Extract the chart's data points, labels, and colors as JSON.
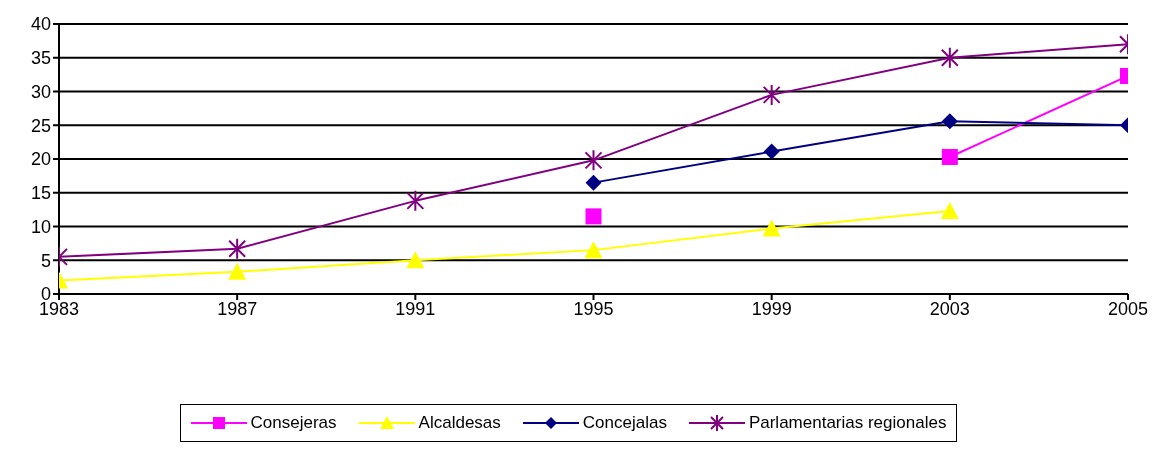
{
  "chart_data": {
    "type": "line",
    "categories": [
      "1983",
      "1987",
      "1991",
      "1995",
      "1999",
      "2003",
      "2005"
    ],
    "ylim": [
      0,
      40
    ],
    "yticks": [
      0,
      5,
      10,
      15,
      20,
      25,
      30,
      35,
      40
    ],
    "grid": "y",
    "legend": "bottom",
    "series": [
      {
        "name": "Consejeras",
        "color": "#ff00ff",
        "marker": "square",
        "values": [
          null,
          null,
          null,
          11.5,
          null,
          20.3,
          32.3
        ]
      },
      {
        "name": "Alcaldesas",
        "color": "#ffff00",
        "marker": "triangle",
        "values": [
          2,
          3.3,
          5,
          6.5,
          9.7,
          12.3,
          null
        ]
      },
      {
        "name": "Concejalas",
        "color": "#000080",
        "marker": "diamond",
        "values": [
          null,
          null,
          null,
          16.5,
          21.1,
          25.6,
          25
        ]
      },
      {
        "name": "Parlamentarias regionales",
        "color": "#800080",
        "marker": "cross",
        "values": [
          5.5,
          6.7,
          13.8,
          19.8,
          29.5,
          35,
          37
        ]
      }
    ]
  }
}
